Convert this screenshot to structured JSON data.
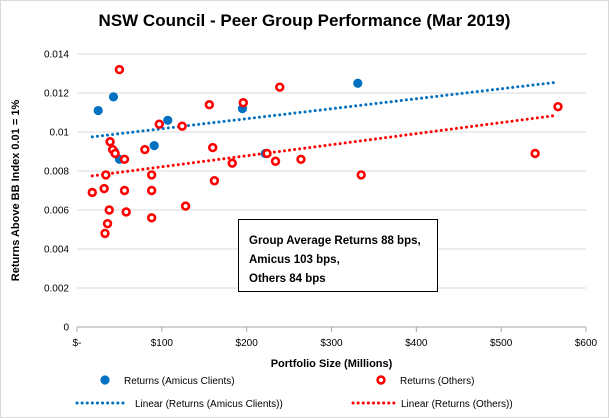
{
  "chart_data": {
    "type": "scatter",
    "title": "NSW Council - Peer Group Performance (Mar 2019)",
    "xlabel": "Portfolio Size (Millions)",
    "ylabel": "Returns Above BB Index 0.01 = 1%",
    "xlim": [
      0,
      600
    ],
    "ylim": [
      0,
      0.014
    ],
    "x_ticks": [
      0,
      100,
      200,
      300,
      400,
      500,
      600
    ],
    "x_tick_labels": [
      "$-",
      "$100",
      "$200",
      "$300",
      "$400",
      "$500",
      "$600"
    ],
    "y_ticks": [
      0,
      0.002,
      0.004,
      0.006,
      0.008,
      0.01,
      0.012,
      0.014
    ],
    "y_tick_labels": [
      "0",
      "0.002",
      "0.004",
      "0.006",
      "0.008",
      "0.01",
      "0.012",
      "0.014"
    ],
    "grid": "horizontal",
    "legend_position": "bottom",
    "series": [
      {
        "name": "Returns (Amicus Clients)",
        "color": "#0070c0",
        "marker": "filled-circle",
        "points": [
          {
            "x": 25,
            "y": 0.0111
          },
          {
            "x": 43,
            "y": 0.0118
          },
          {
            "x": 44,
            "y": 0.009
          },
          {
            "x": 50,
            "y": 0.0086
          },
          {
            "x": 91,
            "y": 0.0093
          },
          {
            "x": 107,
            "y": 0.0106
          },
          {
            "x": 195,
            "y": 0.0112
          },
          {
            "x": 222,
            "y": 0.0089
          },
          {
            "x": 331,
            "y": 0.0125
          }
        ]
      },
      {
        "name": "Returns (Others)",
        "color": "#ff0000",
        "marker": "ring",
        "points": [
          {
            "x": 18,
            "y": 0.0069
          },
          {
            "x": 32,
            "y": 0.0071
          },
          {
            "x": 33,
            "y": 0.0048
          },
          {
            "x": 34,
            "y": 0.0078
          },
          {
            "x": 36,
            "y": 0.0053
          },
          {
            "x": 38,
            "y": 0.006
          },
          {
            "x": 39,
            "y": 0.0095
          },
          {
            "x": 42,
            "y": 0.0091
          },
          {
            "x": 45,
            "y": 0.0089
          },
          {
            "x": 50,
            "y": 0.0132
          },
          {
            "x": 56,
            "y": 0.007
          },
          {
            "x": 56,
            "y": 0.0086
          },
          {
            "x": 58,
            "y": 0.0059
          },
          {
            "x": 80,
            "y": 0.0091
          },
          {
            "x": 88,
            "y": 0.007
          },
          {
            "x": 88,
            "y": 0.0078
          },
          {
            "x": 88,
            "y": 0.0056
          },
          {
            "x": 97,
            "y": 0.0104
          },
          {
            "x": 124,
            "y": 0.0103
          },
          {
            "x": 128,
            "y": 0.0062
          },
          {
            "x": 156,
            "y": 0.0114
          },
          {
            "x": 160,
            "y": 0.0092
          },
          {
            "x": 162,
            "y": 0.0075
          },
          {
            "x": 183,
            "y": 0.0084
          },
          {
            "x": 196,
            "y": 0.0115
          },
          {
            "x": 224,
            "y": 0.0089
          },
          {
            "x": 234,
            "y": 0.0085
          },
          {
            "x": 239,
            "y": 0.0123
          },
          {
            "x": 264,
            "y": 0.0086
          },
          {
            "x": 335,
            "y": 0.0078
          },
          {
            "x": 540,
            "y": 0.0089
          },
          {
            "x": 567,
            "y": 0.0113
          }
        ]
      }
    ],
    "trendlines": [
      {
        "name": "Linear (Returns (Amicus Clients))",
        "color": "#0070c0",
        "x": [
          18,
          565
        ],
        "y": [
          0.00975,
          0.01255
        ]
      },
      {
        "name": "Linear (Returns (Others))",
        "color": "#ff0000",
        "x": [
          18,
          565
        ],
        "y": [
          0.00775,
          0.01085
        ]
      }
    ],
    "annotation": {
      "lines": [
        "Group Average Returns 88 bps,",
        "Amicus 103 bps,",
        "Others 84 bps"
      ]
    }
  }
}
